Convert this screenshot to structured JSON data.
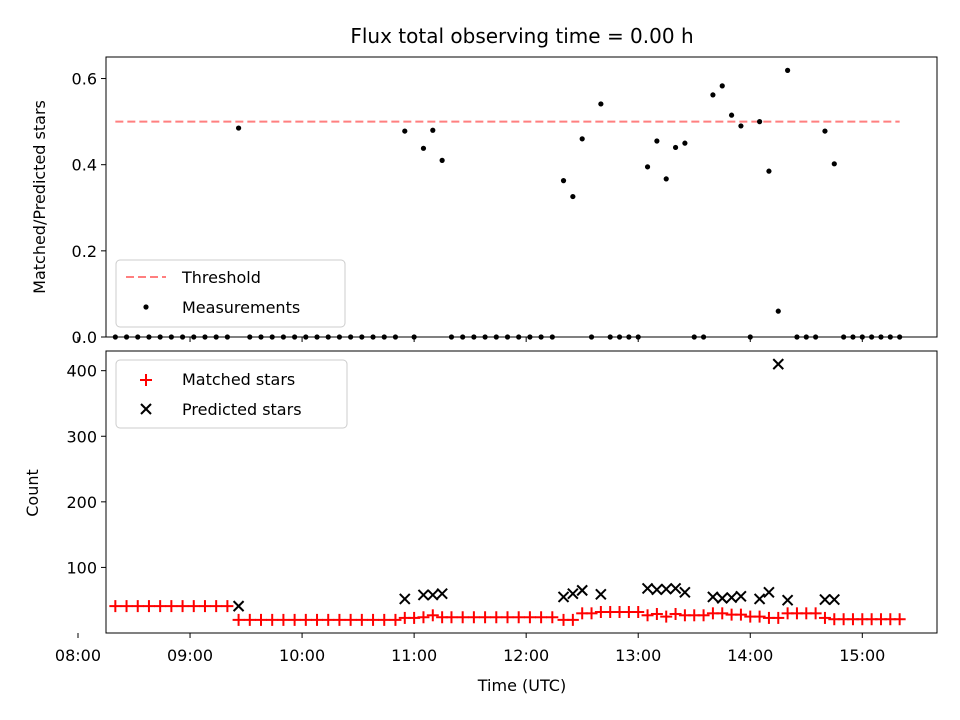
{
  "chart_data": [
    {
      "type": "scatter",
      "title": "Flux total observing time = 0.00 h",
      "ylabel": "Matched/Predicted stars",
      "ylim": [
        0,
        0.65
      ],
      "yticks": [
        0.0,
        0.2,
        0.4,
        0.6
      ],
      "ytick_labels": [
        "0.0",
        "0.2",
        "0.4",
        "0.6"
      ],
      "xlim": [
        "08:15",
        "15:40"
      ],
      "xticks": [
        "08:00",
        "09:00",
        "10:00",
        "11:00",
        "12:00",
        "13:00",
        "14:00",
        "15:00"
      ],
      "threshold": {
        "name": "Threshold",
        "value": 0.5,
        "x_start": "08:20",
        "x_end": "15:20",
        "color": "#ff7f7f",
        "style": "dashed"
      },
      "legend": {
        "placement": "lower-left",
        "entries": [
          "Threshold",
          "Measurements"
        ]
      },
      "series": [
        {
          "name": "Measurements",
          "color": "#000000",
          "marker": "dot",
          "points": [
            [
              "08:20",
              0
            ],
            [
              "08:26",
              0
            ],
            [
              "08:32",
              0
            ],
            [
              "08:38",
              0
            ],
            [
              "08:44",
              0
            ],
            [
              "08:50",
              0
            ],
            [
              "08:56",
              0
            ],
            [
              "09:02",
              0
            ],
            [
              "09:08",
              0
            ],
            [
              "09:14",
              0
            ],
            [
              "09:20",
              0
            ],
            [
              "09:26",
              0.485
            ],
            [
              "09:32",
              0
            ],
            [
              "09:38",
              0
            ],
            [
              "09:44",
              0
            ],
            [
              "09:50",
              0
            ],
            [
              "09:56",
              0
            ],
            [
              "10:02",
              0
            ],
            [
              "10:08",
              0
            ],
            [
              "10:14",
              0
            ],
            [
              "10:20",
              0
            ],
            [
              "10:26",
              0
            ],
            [
              "10:32",
              0
            ],
            [
              "10:38",
              0
            ],
            [
              "10:44",
              0
            ],
            [
              "10:50",
              0
            ],
            [
              "10:55",
              0.478
            ],
            [
              "11:00",
              0
            ],
            [
              "11:05",
              0.438
            ],
            [
              "11:10",
              0.48
            ],
            [
              "11:15",
              0.41
            ],
            [
              "11:20",
              0
            ],
            [
              "11:26",
              0
            ],
            [
              "11:32",
              0
            ],
            [
              "11:38",
              0
            ],
            [
              "11:44",
              0
            ],
            [
              "11:50",
              0
            ],
            [
              "11:56",
              0
            ],
            [
              "12:02",
              0
            ],
            [
              "12:08",
              0
            ],
            [
              "12:14",
              0
            ],
            [
              "12:20",
              0.363
            ],
            [
              "12:25",
              0.326
            ],
            [
              "12:30",
              0.46
            ],
            [
              "12:35",
              0
            ],
            [
              "12:40",
              0.541
            ],
            [
              "12:45",
              0
            ],
            [
              "12:50",
              0
            ],
            [
              "12:55",
              0
            ],
            [
              "13:00",
              0
            ],
            [
              "13:05",
              0.395
            ],
            [
              "13:10",
              0.455
            ],
            [
              "13:15",
              0.367
            ],
            [
              "13:20",
              0.44
            ],
            [
              "13:25",
              0.45
            ],
            [
              "13:30",
              0
            ],
            [
              "13:35",
              0
            ],
            [
              "13:40",
              0.562
            ],
            [
              "13:45",
              0.583
            ],
            [
              "13:50",
              0.515
            ],
            [
              "13:55",
              0.49
            ],
            [
              "14:00",
              0
            ],
            [
              "14:05",
              0.5
            ],
            [
              "14:10",
              0.385
            ],
            [
              "14:15",
              0.06
            ],
            [
              "14:20",
              0.619
            ],
            [
              "14:25",
              0
            ],
            [
              "14:30",
              0
            ],
            [
              "14:35",
              0
            ],
            [
              "14:40",
              0.478
            ],
            [
              "14:45",
              0.402
            ],
            [
              "14:50",
              0
            ],
            [
              "14:55",
              0
            ],
            [
              "15:00",
              0
            ],
            [
              "15:05",
              0
            ],
            [
              "15:10",
              0
            ],
            [
              "15:15",
              0
            ],
            [
              "15:20",
              0
            ]
          ]
        }
      ]
    },
    {
      "type": "scatter",
      "title": "",
      "xlabel": "Time (UTC)",
      "ylabel": "Count",
      "ylim": [
        0,
        430
      ],
      "yticks": [
        100,
        200,
        300,
        400
      ],
      "ytick_labels": [
        "100",
        "200",
        "300",
        "400"
      ],
      "xlim": [
        "08:15",
        "15:40"
      ],
      "xticks": [
        "08:00",
        "09:00",
        "10:00",
        "11:00",
        "12:00",
        "13:00",
        "14:00",
        "15:00"
      ],
      "xtick_labels": [
        "08:00",
        "09:00",
        "10:00",
        "11:00",
        "12:00",
        "13:00",
        "14:00",
        "15:00"
      ],
      "legend": {
        "placement": "upper-left",
        "entries": [
          "Matched stars",
          "Predicted stars"
        ]
      },
      "series": [
        {
          "name": "Matched stars",
          "color": "#ff0000",
          "marker": "plus",
          "points": [
            [
              "08:20",
              41
            ],
            [
              "08:26",
              41
            ],
            [
              "08:32",
              41
            ],
            [
              "08:38",
              41
            ],
            [
              "08:44",
              41
            ],
            [
              "08:50",
              41
            ],
            [
              "08:56",
              41
            ],
            [
              "09:02",
              41
            ],
            [
              "09:08",
              41
            ],
            [
              "09:14",
              41
            ],
            [
              "09:20",
              41
            ],
            [
              "09:26",
              20
            ],
            [
              "09:32",
              20
            ],
            [
              "09:38",
              20
            ],
            [
              "09:44",
              20
            ],
            [
              "09:50",
              20
            ],
            [
              "09:56",
              20
            ],
            [
              "10:02",
              20
            ],
            [
              "10:08",
              20
            ],
            [
              "10:14",
              20
            ],
            [
              "10:20",
              20
            ],
            [
              "10:26",
              20
            ],
            [
              "10:32",
              20
            ],
            [
              "10:38",
              20
            ],
            [
              "10:44",
              20
            ],
            [
              "10:50",
              20
            ],
            [
              "10:55",
              23
            ],
            [
              "11:00",
              23
            ],
            [
              "11:05",
              24
            ],
            [
              "11:10",
              27
            ],
            [
              "11:15",
              24
            ],
            [
              "11:20",
              24
            ],
            [
              "11:26",
              24
            ],
            [
              "11:32",
              24
            ],
            [
              "11:38",
              24
            ],
            [
              "11:44",
              24
            ],
            [
              "11:50",
              24
            ],
            [
              "11:56",
              24
            ],
            [
              "12:02",
              24
            ],
            [
              "12:08",
              24
            ],
            [
              "12:14",
              24
            ],
            [
              "12:20",
              20
            ],
            [
              "12:25",
              20
            ],
            [
              "12:30",
              30
            ],
            [
              "12:35",
              30
            ],
            [
              "12:40",
              32
            ],
            [
              "12:45",
              32
            ],
            [
              "12:50",
              32
            ],
            [
              "12:55",
              32
            ],
            [
              "13:00",
              32
            ],
            [
              "13:05",
              27
            ],
            [
              "13:10",
              29
            ],
            [
              "13:15",
              25
            ],
            [
              "13:20",
              29
            ],
            [
              "13:25",
              27
            ],
            [
              "13:30",
              27
            ],
            [
              "13:35",
              27
            ],
            [
              "13:40",
              30
            ],
            [
              "13:45",
              30
            ],
            [
              "13:50",
              28
            ],
            [
              "13:55",
              28
            ],
            [
              "14:00",
              25
            ],
            [
              "14:05",
              25
            ],
            [
              "14:10",
              23
            ],
            [
              "14:15",
              23
            ],
            [
              "14:20",
              30
            ],
            [
              "14:25",
              30
            ],
            [
              "14:30",
              30
            ],
            [
              "14:35",
              30
            ],
            [
              "14:40",
              23
            ],
            [
              "14:45",
              21
            ],
            [
              "14:50",
              21
            ],
            [
              "14:55",
              21
            ],
            [
              "15:00",
              21
            ],
            [
              "15:05",
              21
            ],
            [
              "15:10",
              21
            ],
            [
              "15:15",
              21
            ],
            [
              "15:20",
              21
            ]
          ]
        },
        {
          "name": "Predicted stars",
          "color": "#000000",
          "marker": "x",
          "points": [
            [
              "09:26",
              41
            ],
            [
              "10:55",
              52
            ],
            [
              "11:05",
              58
            ],
            [
              "11:10",
              58
            ],
            [
              "11:15",
              60
            ],
            [
              "12:20",
              55
            ],
            [
              "12:25",
              60
            ],
            [
              "12:30",
              65
            ],
            [
              "12:40",
              59
            ],
            [
              "13:05",
              68
            ],
            [
              "13:10",
              66
            ],
            [
              "13:15",
              67
            ],
            [
              "13:20",
              68
            ],
            [
              "13:25",
              62
            ],
            [
              "13:40",
              55
            ],
            [
              "13:45",
              53
            ],
            [
              "13:50",
              54
            ],
            [
              "13:55",
              56
            ],
            [
              "14:05",
              52
            ],
            [
              "14:10",
              62
            ],
            [
              "14:15",
              410
            ],
            [
              "14:20",
              50
            ],
            [
              "14:40",
              51
            ],
            [
              "14:45",
              51
            ]
          ]
        }
      ]
    }
  ]
}
